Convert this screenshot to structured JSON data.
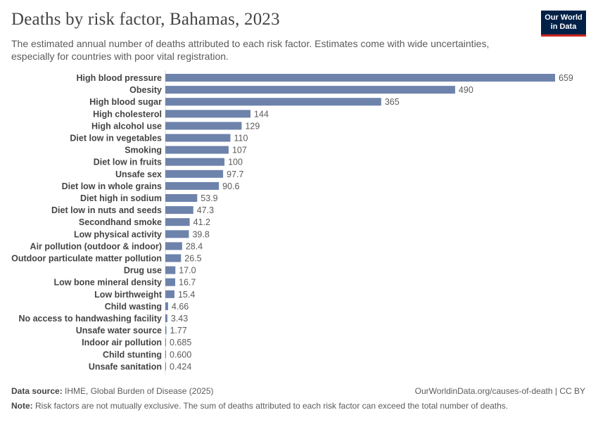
{
  "header": {
    "title": "Deaths by risk factor, Bahamas, 2023",
    "subtitle": "The estimated annual number of deaths attributed to each risk factor. Estimates come with wide uncertainties, especially for countries with poor vital registration.",
    "logo_line1": "Our World",
    "logo_line2": "in Data"
  },
  "colors": {
    "bar": "#6d83ab",
    "text": "#444444",
    "axis": "#dddddd"
  },
  "chart_data": {
    "type": "bar",
    "orientation": "horizontal",
    "categories": [
      "High blood pressure",
      "Obesity",
      "High blood sugar",
      "High cholesterol",
      "High alcohol use",
      "Diet low in vegetables",
      "Smoking",
      "Diet low in fruits",
      "Unsafe sex",
      "Diet low in whole grains",
      "Diet high in sodium",
      "Diet low in nuts and seeds",
      "Secondhand smoke",
      "Low physical activity",
      "Air pollution (outdoor & indoor)",
      "Outdoor particulate matter pollution",
      "Drug use",
      "Low bone mineral density",
      "Low birthweight",
      "Child wasting",
      "No access to handwashing facility",
      "Unsafe water source",
      "Indoor air pollution",
      "Child stunting",
      "Unsafe sanitation"
    ],
    "values": [
      659,
      490,
      365,
      144,
      129,
      110,
      107,
      100,
      97.7,
      90.6,
      53.9,
      47.3,
      41.2,
      39.8,
      28.4,
      26.5,
      17.0,
      16.7,
      15.4,
      4.66,
      3.43,
      1.77,
      0.685,
      0.6,
      0.424
    ],
    "value_labels": [
      "659",
      "490",
      "365",
      "144",
      "129",
      "110",
      "107",
      "100",
      "97.7",
      "90.6",
      "53.9",
      "47.3",
      "41.2",
      "39.8",
      "28.4",
      "26.5",
      "17.0",
      "16.7",
      "15.4",
      "4.66",
      "3.43",
      "1.77",
      "0.685",
      "0.600",
      "0.424"
    ],
    "xlim": [
      0,
      659
    ]
  },
  "footer": {
    "source_label": "Data source:",
    "source_text": "IHME, Global Burden of Disease (2025)",
    "url_license": "OurWorldinData.org/causes-of-death | CC BY",
    "note_label": "Note:",
    "note_text": "Risk factors are not mutually exclusive. The sum of deaths attributed to each risk factor can exceed the total number of deaths."
  }
}
